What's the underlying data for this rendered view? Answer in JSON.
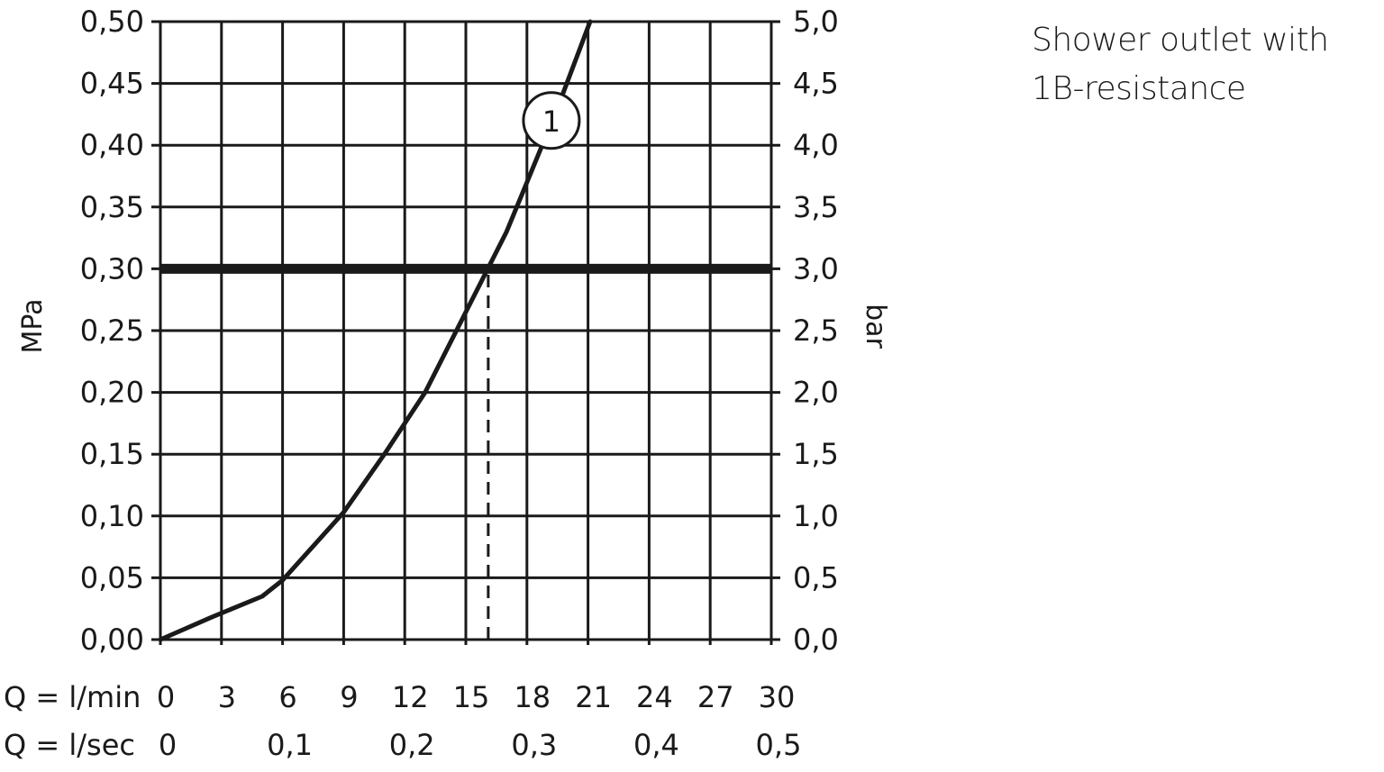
{
  "caption": "Shower outlet with 1B-resistance",
  "chart_data": {
    "type": "line",
    "left_axis": {
      "label": "MPa",
      "ticks": [
        "0,00",
        "0,05",
        "0,10",
        "0,15",
        "0,20",
        "0,25",
        "0,30",
        "0,35",
        "0,40",
        "0,45",
        "0,50"
      ],
      "range": [
        0,
        0.5
      ]
    },
    "right_axis": {
      "label": "bar",
      "ticks": [
        "0,0",
        "0,5",
        "1,0",
        "1,5",
        "2,0",
        "2,5",
        "3,0",
        "3,5",
        "4,0",
        "4,5",
        "5,0"
      ],
      "range": [
        0,
        5
      ]
    },
    "x_axis_lmin": {
      "label": "Q = l/min",
      "ticks": [
        0,
        3,
        6,
        9,
        12,
        15,
        18,
        21,
        24,
        27,
        30
      ],
      "tick_labels": [
        "0",
        "3",
        "6",
        "9",
        "12",
        "15",
        "18",
        "21",
        "24",
        "27",
        "30"
      ],
      "range": [
        0,
        30
      ]
    },
    "x_axis_lsec": {
      "label": "Q = l/sec",
      "ticks": [
        0,
        6,
        12,
        18,
        24,
        30
      ],
      "tick_labels": [
        "0",
        "0,1",
        "0,2",
        "0,3",
        "0,4",
        "0,5"
      ]
    },
    "grid": true,
    "series": [
      {
        "label": "1",
        "color": "#1a1a1a",
        "x": [
          0,
          2.5,
          5,
          6,
          9,
          11,
          13,
          15,
          17,
          18,
          19.5,
          21.1
        ],
        "y": [
          0,
          0.018,
          0.035,
          0.048,
          0.103,
          0.15,
          0.2,
          0.265,
          0.33,
          0.37,
          0.43,
          0.5
        ],
        "label_at": {
          "x": 19.2,
          "y": 0.42
        }
      }
    ],
    "reference_line": {
      "y": 0.3,
      "style": "thick"
    },
    "marker_line": {
      "x": 16.1,
      "y_from": 0,
      "y_to": 0.3,
      "style": "dashed"
    }
  }
}
